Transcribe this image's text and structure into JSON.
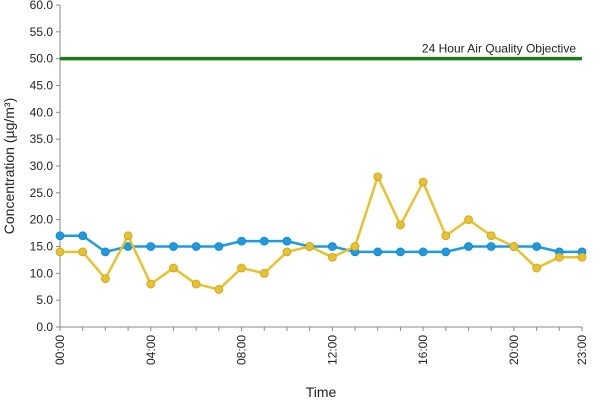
{
  "chart_data": {
    "type": "line",
    "title": "",
    "xlabel": "Time",
    "ylabel": "Concentration (µg/m³)",
    "ylim": [
      0,
      60
    ],
    "yticks": [
      "0.0",
      "5.0",
      "10.0",
      "15.0",
      "20.0",
      "25.0",
      "30.0",
      "35.0",
      "40.0",
      "45.0",
      "50.0",
      "55.0",
      "60.0"
    ],
    "xticks": [
      "00:00",
      "04:00",
      "08:00",
      "12:00",
      "16:00",
      "20:00",
      "23:00"
    ],
    "x": [
      0,
      1,
      2,
      3,
      4,
      5,
      6,
      7,
      8,
      9,
      10,
      11,
      12,
      13,
      14,
      15,
      16,
      17,
      18,
      19,
      20,
      21,
      22,
      23
    ],
    "grid": false,
    "legend": "none",
    "reference_line": {
      "label": "24 Hour Air Quality Objective",
      "value": 50,
      "color": "#1a7a1a"
    },
    "series": [
      {
        "color": "#1e9be0",
        "values": [
          17,
          17,
          14,
          15,
          15,
          15,
          15,
          15,
          16,
          16,
          16,
          15,
          15,
          14,
          14,
          14,
          14,
          14,
          15,
          15,
          15,
          15,
          14,
          14
        ]
      },
      {
        "color": "#e8c22e",
        "values": [
          14,
          14,
          9,
          17,
          8,
          11,
          8,
          7,
          11,
          10,
          14,
          15,
          13,
          15,
          28,
          19,
          27,
          17,
          20,
          17,
          15,
          11,
          13,
          13
        ]
      }
    ]
  }
}
